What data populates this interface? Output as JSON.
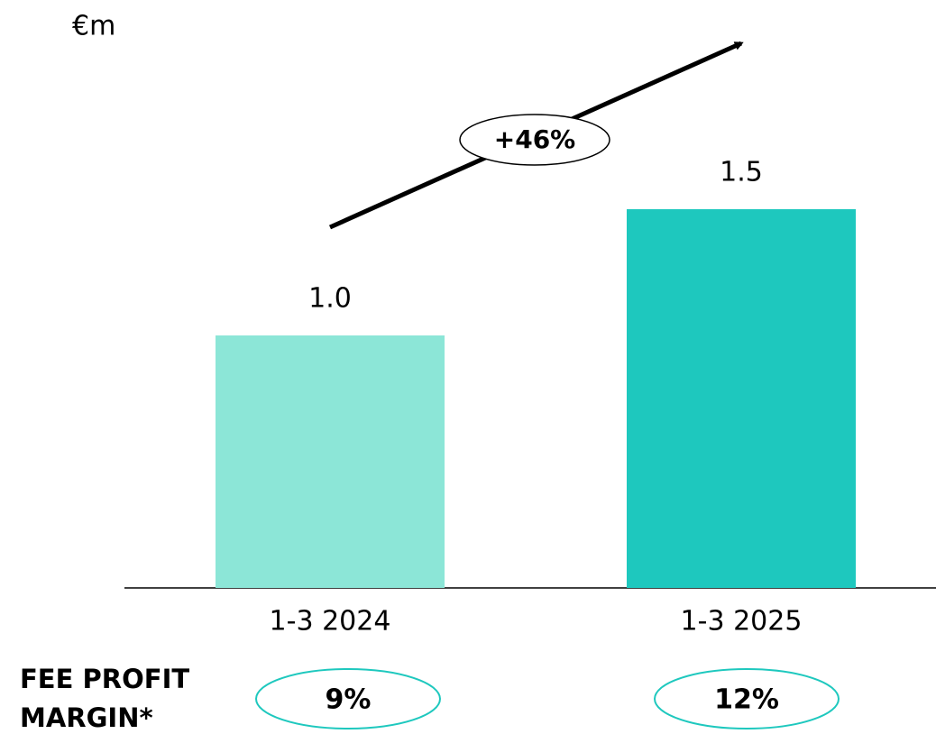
{
  "chart_data": {
    "type": "bar",
    "unit_label": "€m",
    "categories": [
      "1-3 2024",
      "1-3 2025"
    ],
    "values": [
      1.0,
      1.5
    ],
    "value_labels": [
      "1.0",
      "1.5"
    ],
    "colors": [
      "#8ce6d7",
      "#1ec8be"
    ],
    "ylim": [
      0,
      2
    ],
    "annotation": "+46%",
    "footer": {
      "label": [
        "FEE PROFIT",
        "MARGIN*"
      ],
      "values": [
        "9%",
        "12%"
      ],
      "color": "#1ec8be"
    }
  }
}
